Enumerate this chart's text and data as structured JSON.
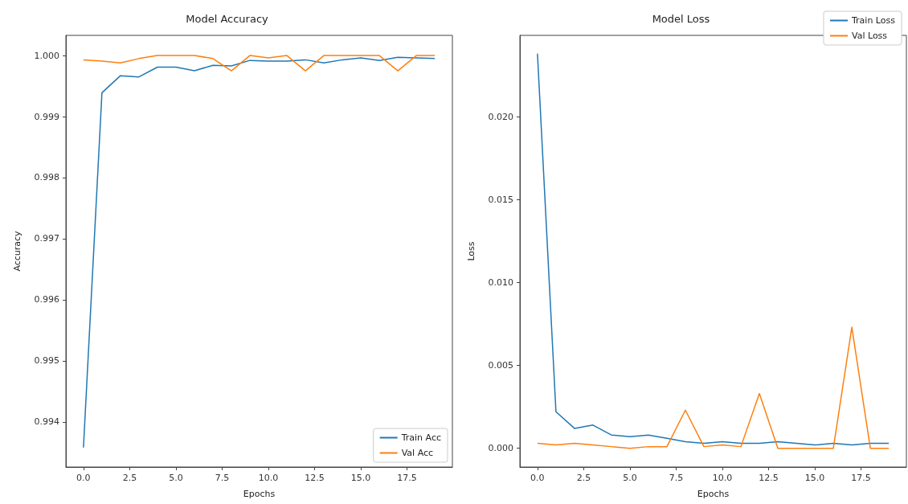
{
  "chart_data": [
    {
      "type": "line",
      "title": "Model Accuracy",
      "xlabel": "Epochs",
      "ylabel": "Accuracy",
      "x": [
        0,
        1,
        2,
        3,
        4,
        5,
        6,
        7,
        8,
        9,
        10,
        11,
        12,
        13,
        14,
        15,
        16,
        17,
        18,
        19
      ],
      "series": [
        {
          "name": "Train Acc",
          "color": "#1f77b4",
          "values": [
            0.99358,
            0.99939,
            0.99967,
            0.99965,
            0.99981,
            0.99981,
            0.99975,
            0.99984,
            0.99983,
            0.99992,
            0.99991,
            0.99991,
            0.99993,
            0.99988,
            0.99993,
            0.99996,
            0.99992,
            0.99997,
            0.99996,
            0.99995
          ]
        },
        {
          "name": "Val Acc",
          "color": "#ff7f0e",
          "values": [
            0.99993,
            0.99991,
            0.99988,
            0.99995,
            1.0,
            1.0,
            1.0,
            0.99995,
            0.99975,
            1.0,
            0.99996,
            1.0,
            0.99975,
            1.0,
            1.0,
            1.0,
            1.0,
            0.99975,
            1.0,
            1.0
          ]
        }
      ],
      "xlim": [
        -0.95,
        19.95
      ],
      "xticks": [
        {
          "value": 0,
          "label": "0.0"
        },
        2.5,
        {
          "value": 5,
          "label": "5.0"
        },
        7.5,
        {
          "value": 10,
          "label": "10.0"
        },
        12.5,
        {
          "value": 15,
          "label": "15.0"
        },
        17.5
      ],
      "ylim": [
        0.99326,
        1.00033
      ],
      "yticks": [
        0.994,
        0.995,
        0.996,
        0.997,
        0.998,
        0.999,
        {
          "value": 1,
          "label": "1.000"
        }
      ],
      "legend": "bottom right",
      "grid": false
    },
    {
      "type": "line",
      "title": "Model Loss",
      "xlabel": "Epochs",
      "ylabel": "Loss",
      "x": [
        0,
        1,
        2,
        3,
        4,
        5,
        6,
        7,
        8,
        9,
        10,
        11,
        12,
        13,
        14,
        15,
        16,
        17,
        18,
        19
      ],
      "series": [
        {
          "name": "Train Loss",
          "color": "#1f77b4",
          "values": [
            0.0238,
            0.0022,
            0.0012,
            0.0014,
            0.0008,
            0.0007,
            0.0008,
            0.0006,
            0.0004,
            0.0003,
            0.0004,
            0.0003,
            0.0003,
            0.0004,
            0.0003,
            0.0002,
            0.0003,
            0.0002,
            0.0003,
            0.0003
          ]
        },
        {
          "name": "Val Loss",
          "color": "#ff7f0e",
          "values": [
            0.0003,
            0.0002,
            0.0003,
            0.0002,
            0.0001,
            0,
            0.0001,
            0.0001,
            0.0023,
            0.0001,
            0.0002,
            0.0001,
            0.0033,
            0,
            0,
            0,
            0,
            0.0073,
            0,
            0
          ]
        }
      ],
      "xlim": [
        -0.95,
        19.95
      ],
      "xticks": [
        {
          "value": 0,
          "label": "0.0"
        },
        2.5,
        {
          "value": 5,
          "label": "5.0"
        },
        7.5,
        {
          "value": 10,
          "label": "10.0"
        },
        12.5,
        {
          "value": 15,
          "label": "15.0"
        },
        17.5
      ],
      "ylim": [
        -0.00113,
        0.0249
      ],
      "yticks": [
        {
          "value": 0,
          "label": "0.000"
        },
        0.005,
        {
          "value": 0.01,
          "label": "0.010"
        },
        0.015,
        {
          "value": 0.02,
          "label": "0.020"
        }
      ],
      "legend": "top right",
      "grid": false
    }
  ]
}
